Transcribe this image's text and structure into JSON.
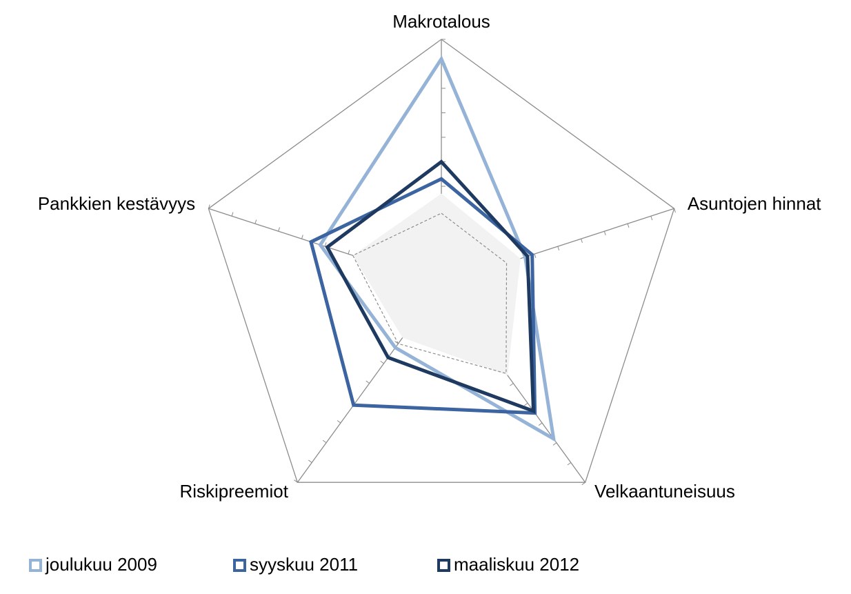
{
  "chart_data": {
    "type": "radar",
    "categories": [
      "Makrotalous",
      "Asuntojen hinnat",
      "Velkaantuneisuus",
      "Riskipreemiot",
      "Pankkien kestävyys"
    ],
    "rlim": [
      0,
      10
    ],
    "rticks": [
      0,
      1,
      2,
      3,
      4,
      5,
      6,
      7,
      8,
      9,
      10
    ],
    "legend": "bottom",
    "series": [
      {
        "style": "area",
        "color": "#f2f2f2",
        "values": [
          3.7,
          3.4,
          4.6,
          2.7,
          3.8
        ]
      },
      {
        "style": "dashed",
        "color": "#8c8c8c",
        "values": [
          2.9,
          2.8,
          4.5,
          3.0,
          3.8
        ]
      },
      {
        "name": "joulukuu 2009",
        "color": "#95b3d7",
        "values": [
          9.2,
          3.6,
          7.8,
          3.2,
          5.2
        ]
      },
      {
        "name": "syyskuu 2011",
        "color": "#3b64a0",
        "values": [
          4.3,
          3.9,
          6.5,
          6.1,
          5.6
        ]
      },
      {
        "name": "maaliskuu 2012",
        "color": "#1f3a60",
        "values": [
          5.0,
          3.7,
          6.4,
          3.7,
          4.9
        ]
      }
    ]
  }
}
